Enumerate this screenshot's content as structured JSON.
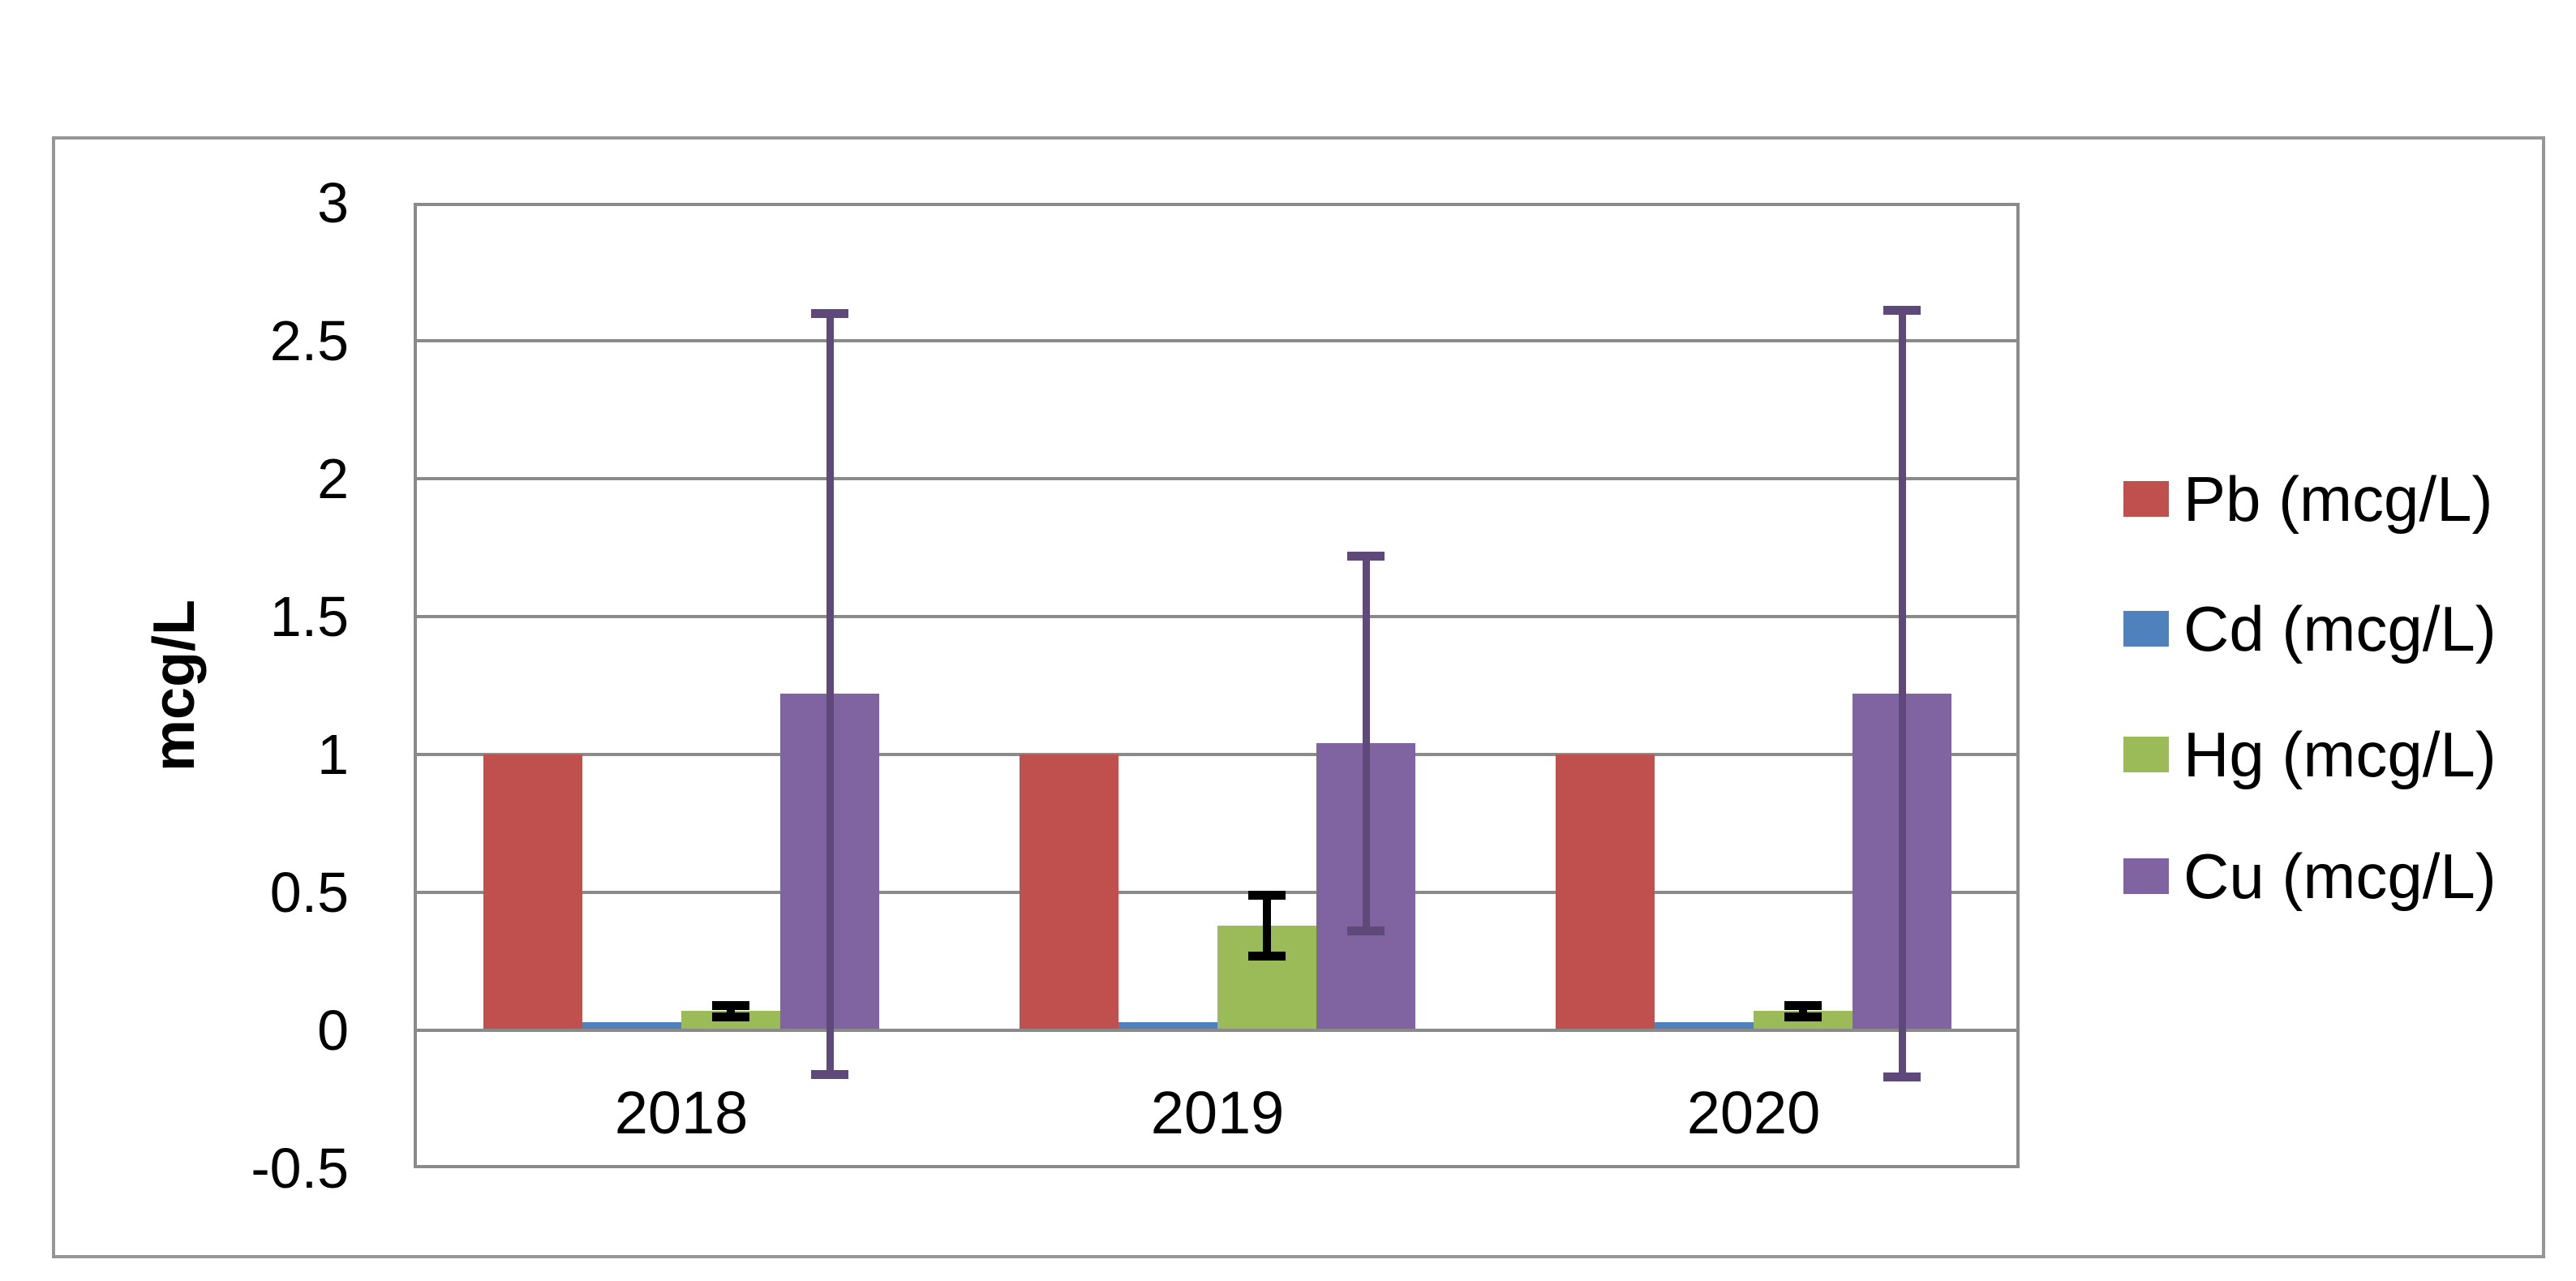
{
  "figure": {
    "background": "#FFFFFF",
    "frame_border_color": "#969696",
    "plot_border_color": "#8A8A8A"
  },
  "chart_data": {
    "type": "bar",
    "title": "",
    "xlabel": "",
    "ylabel": "mcg/L",
    "categories": [
      "2018",
      "2019",
      "2020"
    ],
    "series": [
      {
        "name": "Pb (mcg/L)",
        "color": "#C0504D",
        "values": [
          1.0,
          1.0,
          1.0
        ],
        "errors": [
          null,
          null,
          null
        ],
        "error_color": null
      },
      {
        "name": "Cd (mcg/L)",
        "color": "#4F81BD",
        "values": [
          0.03,
          0.03,
          0.03
        ],
        "errors": [
          null,
          null,
          null
        ],
        "error_color": null
      },
      {
        "name": "Hg (mcg/L)",
        "color": "#9BBB59",
        "values": [
          0.07,
          0.38,
          0.07
        ],
        "errors": [
          0.02,
          0.11,
          0.02
        ],
        "error_color": "#000000"
      },
      {
        "name": "Cu (mcg/L)",
        "color": "#8064A2",
        "values": [
          1.22,
          1.04,
          1.22
        ],
        "errors": [
          1.38,
          0.68,
          1.39
        ],
        "error_color": "#5F497A"
      }
    ],
    "ylim": [
      -0.5,
      3
    ],
    "ytick_step": 0.5,
    "ytick_labels": [
      "3",
      "2.5",
      "2",
      "1.5",
      "1",
      "0.5",
      "0",
      "-0.5"
    ],
    "ytick_values": [
      3,
      2.5,
      2,
      1.5,
      1,
      0.5,
      0,
      -0.5
    ],
    "grid": true,
    "grid_color": "#8A8A8A",
    "legend_position": "right",
    "legend_labels": [
      "Pb (mcg/L)",
      "Cd (mcg/L)",
      "Hg (mcg/L)",
      "Cu (mcg/L)"
    ]
  }
}
